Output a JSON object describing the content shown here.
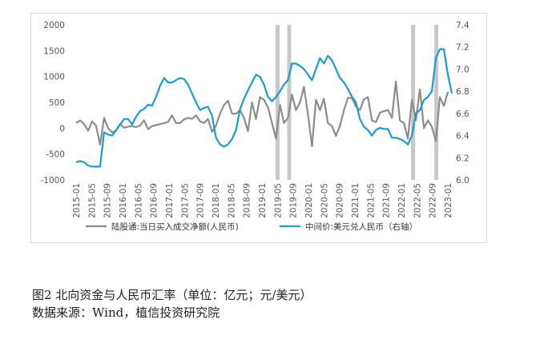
{
  "chart_data": {
    "type": "line",
    "x_labels": [
      "2015-01",
      "2015-05",
      "2015-09",
      "2016-01",
      "2016-05",
      "2016-09",
      "2017-01",
      "2017-05",
      "2017-09",
      "2018-01",
      "2018-05",
      "2018-09",
      "2019-01",
      "2019-05",
      "2019-09",
      "2020-01",
      "2020-05",
      "2020-09",
      "2021-01",
      "2021-05",
      "2021-09",
      "2022-01",
      "2022-05",
      "2022-09",
      "2023-01"
    ],
    "y_left": {
      "min": -1000,
      "max": 2000,
      "ticks": [
        -1000,
        -500,
        0,
        500,
        1000,
        1500,
        2000
      ]
    },
    "y_right": {
      "min": 6.0,
      "max": 7.4,
      "ticks": [
        "6.0",
        "6.2",
        "6.4",
        "6.6",
        "6.8",
        "7.0",
        "7.2",
        "7.4"
      ]
    },
    "shaded_months": [
      "2019-05",
      "2019-08",
      "2022-04",
      "2022-10"
    ],
    "series": [
      {
        "name": "陆股通:当日买入成交净额(人民币)",
        "axis": "left",
        "color": "#8c8c8c",
        "values": [
          100,
          150,
          80,
          -50,
          130,
          50,
          -320,
          200,
          0,
          -80,
          -50,
          80,
          10,
          30,
          40,
          20,
          50,
          150,
          -20,
          40,
          60,
          80,
          100,
          120,
          250,
          100,
          100,
          170,
          200,
          180,
          250,
          130,
          100,
          180,
          -70,
          50,
          280,
          450,
          530,
          280,
          280,
          350,
          200,
          -60,
          500,
          180,
          600,
          550,
          400,
          100,
          -200,
          450,
          100,
          200,
          650,
          350,
          500,
          800,
          260,
          -350,
          550,
          350,
          570,
          100,
          40,
          -150,
          50,
          350,
          590,
          580,
          420,
          350,
          560,
          600,
          150,
          120,
          300,
          330,
          350,
          200,
          900,
          150,
          100,
          -200,
          550,
          150,
          750,
          0,
          150,
          30,
          -250,
          600,
          430,
          700
        ]
      },
      {
        "name": "中间价:美元兑人民币（右轴）",
        "axis": "right",
        "color": "#1a9bd7",
        "values": [
          6.16,
          6.17,
          6.16,
          6.13,
          6.12,
          6.12,
          6.12,
          6.43,
          6.41,
          6.4,
          6.45,
          6.5,
          6.55,
          6.55,
          6.5,
          6.57,
          6.62,
          6.64,
          6.68,
          6.67,
          6.75,
          6.85,
          6.92,
          6.88,
          6.88,
          6.9,
          6.92,
          6.91,
          6.86,
          6.78,
          6.7,
          6.63,
          6.65,
          6.66,
          6.58,
          6.38,
          6.32,
          6.3,
          6.32,
          6.37,
          6.45,
          6.64,
          6.73,
          6.81,
          6.88,
          6.95,
          6.93,
          6.86,
          6.75,
          6.71,
          6.75,
          6.8,
          6.86,
          6.9,
          7.05,
          7.05,
          7.03,
          7.0,
          6.95,
          6.9,
          7.0,
          7.1,
          7.05,
          7.12,
          7.08,
          7.0,
          6.92,
          6.88,
          6.82,
          6.75,
          6.7,
          6.55,
          6.48,
          6.45,
          6.4,
          6.45,
          6.47,
          6.46,
          6.46,
          6.38,
          6.38,
          6.37,
          6.35,
          6.32,
          6.4,
          6.6,
          6.63,
          6.72,
          6.75,
          6.8,
          7.1,
          7.18,
          7.18,
          6.95,
          6.78
        ]
      }
    ]
  },
  "caption": {
    "line1": "图2   北向资金与人民币汇率（单位：亿元；元/美元）",
    "line2": "数据来源：Wind，植信投资研究院"
  }
}
